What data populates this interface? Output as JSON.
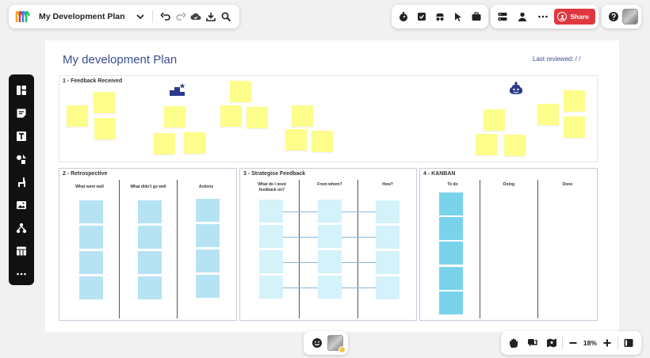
{
  "header": {
    "title": "My Development Plan",
    "share_label": "Share"
  },
  "board": {
    "title": "My development Plan",
    "last_reviewed": "Last reviewed:    /    /"
  },
  "frames": {
    "feedback": {
      "title": "1 - Feedback Received"
    },
    "retro": {
      "title": "2 - Retrospective",
      "columns": [
        "What went well",
        "What didn't go well",
        "Actions"
      ]
    },
    "strategise": {
      "title": "3 - Strategise Feedback",
      "columns": [
        "What do I need feedback on?",
        "From whom?",
        "How?"
      ]
    },
    "kanban": {
      "title": "4 - KANBAN",
      "columns": [
        "To do",
        "Doing",
        "Done"
      ]
    }
  },
  "zoom": {
    "level": "18%"
  },
  "colors": {
    "sticky": "#fdfd8c",
    "retro_card": "#b6e3f4",
    "strategise_card": "#d4f2fa",
    "kanban_card": "#79d4eb",
    "share": "#e0373f",
    "title": "#3b4f8f"
  },
  "icons": {
    "feedback_left": "podium-star-icon",
    "feedback_right": "poop-icon"
  }
}
